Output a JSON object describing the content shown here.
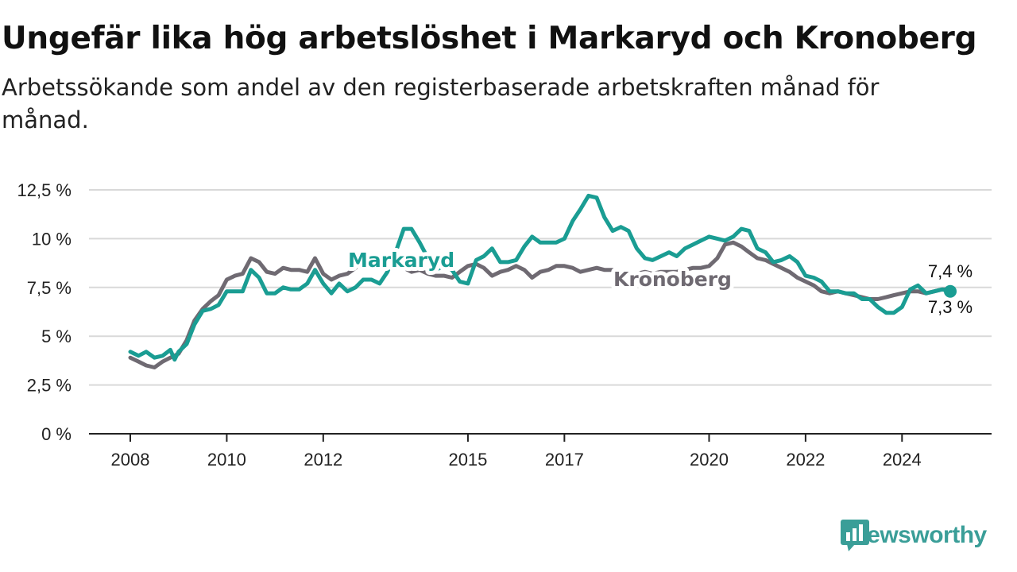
{
  "title": "Ungefär lika hög arbetslöshet i Markaryd och Kronoberg",
  "subtitle": "Arbetssökande som andel av den registerbaserade arbetskraften månad för månad.",
  "brand": {
    "name": "Newsworthy",
    "icon": "bar-chart-speech-bubble-icon",
    "color": "#3a9e98"
  },
  "colors": {
    "markaryd": "#1a9d93",
    "kronoberg": "#6f6a72",
    "grid": "#d9d9d9",
    "axis": "#222222"
  },
  "chart_data": {
    "type": "line",
    "yticks": [
      "0 %",
      "2,5 %",
      "5 %",
      "7,5 %",
      "10 %",
      "12,5 %"
    ],
    "ytick_values": [
      0,
      2.5,
      5,
      7.5,
      10,
      12.5
    ],
    "xticks": [
      "2008",
      "2010",
      "2012",
      "2015",
      "2017",
      "2020",
      "2022",
      "2024"
    ],
    "xtick_values": [
      2008,
      2010,
      2012,
      2015,
      2017,
      2020,
      2022,
      2024
    ],
    "xlim": [
      2008,
      2025
    ],
    "ylim": [
      0,
      12.5
    ],
    "grid": true,
    "series": [
      {
        "name": "Markaryd",
        "color": "#1a9d93",
        "end_label": "7,3 %",
        "points": [
          [
            2008.0,
            4.2
          ],
          [
            2008.17,
            4.0
          ],
          [
            2008.33,
            4.2
          ],
          [
            2008.5,
            3.9
          ],
          [
            2008.67,
            4.0
          ],
          [
            2008.83,
            4.3
          ],
          [
            2008.92,
            3.8
          ],
          [
            2009.0,
            4.2
          ],
          [
            2009.17,
            4.6
          ],
          [
            2009.33,
            5.6
          ],
          [
            2009.5,
            6.3
          ],
          [
            2009.67,
            6.4
          ],
          [
            2009.83,
            6.6
          ],
          [
            2010.0,
            7.3
          ],
          [
            2010.17,
            7.3
          ],
          [
            2010.33,
            7.3
          ],
          [
            2010.5,
            8.4
          ],
          [
            2010.67,
            8.0
          ],
          [
            2010.83,
            7.2
          ],
          [
            2011.0,
            7.2
          ],
          [
            2011.17,
            7.5
          ],
          [
            2011.33,
            7.4
          ],
          [
            2011.5,
            7.4
          ],
          [
            2011.67,
            7.7
          ],
          [
            2011.83,
            8.4
          ],
          [
            2012.0,
            7.7
          ],
          [
            2012.17,
            7.2
          ],
          [
            2012.33,
            7.7
          ],
          [
            2012.5,
            7.3
          ],
          [
            2012.67,
            7.5
          ],
          [
            2012.83,
            7.9
          ],
          [
            2013.0,
            7.9
          ],
          [
            2013.17,
            7.7
          ],
          [
            2013.33,
            8.3
          ],
          [
            2013.5,
            9.3
          ],
          [
            2013.67,
            10.5
          ],
          [
            2013.83,
            10.5
          ],
          [
            2014.0,
            9.8
          ],
          [
            2014.17,
            9.0
          ],
          [
            2014.33,
            8.4
          ],
          [
            2014.5,
            8.6
          ],
          [
            2014.67,
            8.4
          ],
          [
            2014.83,
            7.8
          ],
          [
            2015.0,
            7.7
          ],
          [
            2015.17,
            8.9
          ],
          [
            2015.33,
            9.1
          ],
          [
            2015.5,
            9.5
          ],
          [
            2015.67,
            8.8
          ],
          [
            2015.83,
            8.8
          ],
          [
            2016.0,
            8.9
          ],
          [
            2016.17,
            9.6
          ],
          [
            2016.33,
            10.1
          ],
          [
            2016.5,
            9.8
          ],
          [
            2016.67,
            9.8
          ],
          [
            2016.83,
            9.8
          ],
          [
            2017.0,
            10.0
          ],
          [
            2017.17,
            10.9
          ],
          [
            2017.33,
            11.5
          ],
          [
            2017.5,
            12.2
          ],
          [
            2017.67,
            12.1
          ],
          [
            2017.83,
            11.1
          ],
          [
            2018.0,
            10.4
          ],
          [
            2018.17,
            10.6
          ],
          [
            2018.33,
            10.4
          ],
          [
            2018.5,
            9.5
          ],
          [
            2018.67,
            9.0
          ],
          [
            2018.83,
            8.9
          ],
          [
            2019.0,
            9.1
          ],
          [
            2019.17,
            9.3
          ],
          [
            2019.33,
            9.1
          ],
          [
            2019.5,
            9.5
          ],
          [
            2019.67,
            9.7
          ],
          [
            2019.83,
            9.9
          ],
          [
            2020.0,
            10.1
          ],
          [
            2020.17,
            10.0
          ],
          [
            2020.33,
            9.9
          ],
          [
            2020.5,
            10.1
          ],
          [
            2020.67,
            10.5
          ],
          [
            2020.83,
            10.4
          ],
          [
            2021.0,
            9.5
          ],
          [
            2021.17,
            9.3
          ],
          [
            2021.33,
            8.8
          ],
          [
            2021.5,
            8.9
          ],
          [
            2021.67,
            9.1
          ],
          [
            2021.83,
            8.8
          ],
          [
            2022.0,
            8.1
          ],
          [
            2022.17,
            8.0
          ],
          [
            2022.33,
            7.8
          ],
          [
            2022.5,
            7.3
          ],
          [
            2022.67,
            7.3
          ],
          [
            2022.83,
            7.2
          ],
          [
            2023.0,
            7.2
          ],
          [
            2023.17,
            6.9
          ],
          [
            2023.33,
            6.9
          ],
          [
            2023.5,
            6.5
          ],
          [
            2023.67,
            6.2
          ],
          [
            2023.83,
            6.2
          ],
          [
            2024.0,
            6.5
          ],
          [
            2024.17,
            7.4
          ],
          [
            2024.33,
            7.6
          ],
          [
            2024.5,
            7.2
          ],
          [
            2024.67,
            7.3
          ],
          [
            2024.83,
            7.4
          ],
          [
            2025.0,
            7.3
          ]
        ]
      },
      {
        "name": "Kronoberg",
        "color": "#6f6a72",
        "end_label": "7,4 %",
        "points": [
          [
            2008.0,
            3.9
          ],
          [
            2008.17,
            3.7
          ],
          [
            2008.33,
            3.5
          ],
          [
            2008.5,
            3.4
          ],
          [
            2008.67,
            3.7
          ],
          [
            2008.83,
            3.9
          ],
          [
            2009.0,
            4.1
          ],
          [
            2009.17,
            4.8
          ],
          [
            2009.33,
            5.8
          ],
          [
            2009.5,
            6.4
          ],
          [
            2009.67,
            6.8
          ],
          [
            2009.83,
            7.1
          ],
          [
            2010.0,
            7.9
          ],
          [
            2010.17,
            8.1
          ],
          [
            2010.33,
            8.2
          ],
          [
            2010.5,
            9.0
          ],
          [
            2010.67,
            8.8
          ],
          [
            2010.83,
            8.3
          ],
          [
            2011.0,
            8.2
          ],
          [
            2011.17,
            8.5
          ],
          [
            2011.33,
            8.4
          ],
          [
            2011.5,
            8.4
          ],
          [
            2011.67,
            8.3
          ],
          [
            2011.83,
            9.0
          ],
          [
            2012.0,
            8.2
          ],
          [
            2012.17,
            7.9
          ],
          [
            2012.33,
            8.1
          ],
          [
            2012.5,
            8.2
          ],
          [
            2012.67,
            8.5
          ],
          [
            2012.83,
            9.0
          ],
          [
            2013.0,
            8.8
          ],
          [
            2013.17,
            8.6
          ],
          [
            2013.33,
            8.8
          ],
          [
            2013.5,
            8.7
          ],
          [
            2013.67,
            8.5
          ],
          [
            2013.83,
            8.3
          ],
          [
            2014.0,
            8.4
          ],
          [
            2014.17,
            8.2
          ],
          [
            2014.33,
            8.1
          ],
          [
            2014.5,
            8.1
          ],
          [
            2014.67,
            8.0
          ],
          [
            2014.83,
            8.3
          ],
          [
            2015.0,
            8.6
          ],
          [
            2015.17,
            8.7
          ],
          [
            2015.33,
            8.5
          ],
          [
            2015.5,
            8.1
          ],
          [
            2015.67,
            8.3
          ],
          [
            2015.83,
            8.4
          ],
          [
            2016.0,
            8.6
          ],
          [
            2016.17,
            8.4
          ],
          [
            2016.33,
            8.0
          ],
          [
            2016.5,
            8.3
          ],
          [
            2016.67,
            8.4
          ],
          [
            2016.83,
            8.6
          ],
          [
            2017.0,
            8.6
          ],
          [
            2017.17,
            8.5
          ],
          [
            2017.33,
            8.3
          ],
          [
            2017.5,
            8.4
          ],
          [
            2017.67,
            8.5
          ],
          [
            2017.83,
            8.4
          ],
          [
            2018.0,
            8.4
          ],
          [
            2018.17,
            8.3
          ],
          [
            2018.33,
            8.2
          ],
          [
            2018.5,
            8.2
          ],
          [
            2018.67,
            8.3
          ],
          [
            2018.83,
            8.2
          ],
          [
            2019.0,
            8.3
          ],
          [
            2019.17,
            8.3
          ],
          [
            2019.33,
            8.3
          ],
          [
            2019.5,
            8.4
          ],
          [
            2019.67,
            8.5
          ],
          [
            2019.83,
            8.5
          ],
          [
            2020.0,
            8.6
          ],
          [
            2020.17,
            9.0
          ],
          [
            2020.33,
            9.7
          ],
          [
            2020.5,
            9.8
          ],
          [
            2020.67,
            9.6
          ],
          [
            2020.83,
            9.3
          ],
          [
            2021.0,
            9.0
          ],
          [
            2021.17,
            8.9
          ],
          [
            2021.33,
            8.7
          ],
          [
            2021.5,
            8.5
          ],
          [
            2021.67,
            8.3
          ],
          [
            2021.83,
            8.0
          ],
          [
            2022.0,
            7.8
          ],
          [
            2022.17,
            7.6
          ],
          [
            2022.33,
            7.3
          ],
          [
            2022.5,
            7.2
          ],
          [
            2022.67,
            7.3
          ],
          [
            2022.83,
            7.2
          ],
          [
            2023.0,
            7.1
          ],
          [
            2023.17,
            7.0
          ],
          [
            2023.33,
            6.9
          ],
          [
            2023.5,
            6.9
          ],
          [
            2023.67,
            7.0
          ],
          [
            2023.83,
            7.1
          ],
          [
            2024.0,
            7.2
          ],
          [
            2024.17,
            7.3
          ],
          [
            2024.33,
            7.3
          ],
          [
            2024.5,
            7.2
          ],
          [
            2024.67,
            7.3
          ],
          [
            2024.83,
            7.4
          ],
          [
            2025.0,
            7.4
          ]
        ]
      }
    ]
  }
}
